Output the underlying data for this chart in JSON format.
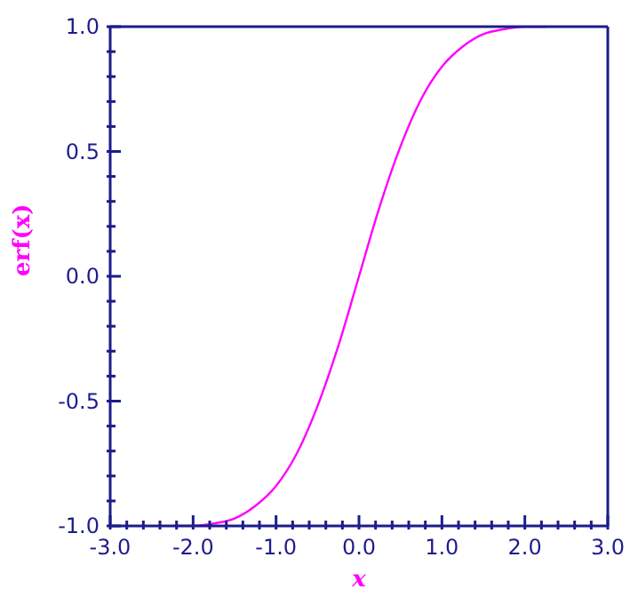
{
  "chart_data": {
    "type": "line",
    "xlabel": "x",
    "ylabel": "erf(x)",
    "x": [
      -2.25,
      -2,
      -1.75,
      -1.5,
      -1.25,
      -1,
      -0.75,
      -0.5,
      -0.25,
      0,
      0.25,
      0.5,
      0.75,
      1,
      1.25,
      1.5,
      1.75,
      2,
      2.25
    ],
    "series": [
      {
        "color": "#ff00ff",
        "values": [
          -1.0,
          -1.0,
          -0.99,
          -0.97,
          -0.92,
          -0.84,
          -0.71,
          -0.52,
          -0.28,
          0.0,
          0.28,
          0.52,
          0.71,
          0.84,
          0.92,
          0.97,
          0.99,
          1.0,
          1.0
        ]
      }
    ],
    "xlim": [
      -3,
      3
    ],
    "ylim": [
      -1,
      1
    ],
    "xticks": [
      {
        "value": -3,
        "label": "-3.0"
      },
      {
        "value": -2.8,
        "label": null
      },
      {
        "value": -2.6,
        "label": null
      },
      {
        "value": -2.4,
        "label": null
      },
      {
        "value": -2.2,
        "label": null
      },
      {
        "value": -2,
        "label": "-2.0"
      },
      {
        "value": -1.8,
        "label": null
      },
      {
        "value": -1.6,
        "label": null
      },
      {
        "value": -1.4,
        "label": null
      },
      {
        "value": -1.2,
        "label": null
      },
      {
        "value": -1,
        "label": "-1.0"
      },
      {
        "value": -0.8,
        "label": null
      },
      {
        "value": -0.6,
        "label": null
      },
      {
        "value": -0.4,
        "label": null
      },
      {
        "value": -0.2,
        "label": null
      },
      {
        "value": 0,
        "label": "0.0"
      },
      {
        "value": 0.2,
        "label": null
      },
      {
        "value": 0.4,
        "label": null
      },
      {
        "value": 0.6,
        "label": null
      },
      {
        "value": 0.8,
        "label": null
      },
      {
        "value": 1,
        "label": "1.0"
      },
      {
        "value": 1.2,
        "label": null
      },
      {
        "value": 1.4,
        "label": null
      },
      {
        "value": 1.6,
        "label": null
      },
      {
        "value": 1.8,
        "label": null
      },
      {
        "value": 2,
        "label": "2.0"
      },
      {
        "value": 2.2,
        "label": null
      },
      {
        "value": 2.4,
        "label": null
      },
      {
        "value": 2.6,
        "label": null
      },
      {
        "value": 2.8,
        "label": null
      },
      {
        "value": 3,
        "label": "3.0"
      }
    ],
    "yticks": [
      {
        "value": -1,
        "label": "-1.0"
      },
      {
        "value": -0.9,
        "label": null
      },
      {
        "value": -0.8,
        "label": null
      },
      {
        "value": -0.7,
        "label": null
      },
      {
        "value": -0.6,
        "label": null
      },
      {
        "value": -0.5,
        "label": "-0.5"
      },
      {
        "value": -0.4,
        "label": null
      },
      {
        "value": -0.3,
        "label": null
      },
      {
        "value": -0.2,
        "label": null
      },
      {
        "value": -0.1,
        "label": null
      },
      {
        "value": 0,
        "label": "0.0"
      },
      {
        "value": 0.1,
        "label": null
      },
      {
        "value": 0.2,
        "label": null
      },
      {
        "value": 0.3,
        "label": null
      },
      {
        "value": 0.4,
        "label": null
      },
      {
        "value": 0.5,
        "label": "0.5"
      },
      {
        "value": 0.6,
        "label": null
      },
      {
        "value": 0.7,
        "label": null
      },
      {
        "value": 0.8,
        "label": null
      },
      {
        "value": 0.9,
        "label": null
      },
      {
        "value": 1,
        "label": "1.0"
      }
    ],
    "grid": false,
    "legend": false,
    "marker": "none",
    "line_style": "solid"
  }
}
